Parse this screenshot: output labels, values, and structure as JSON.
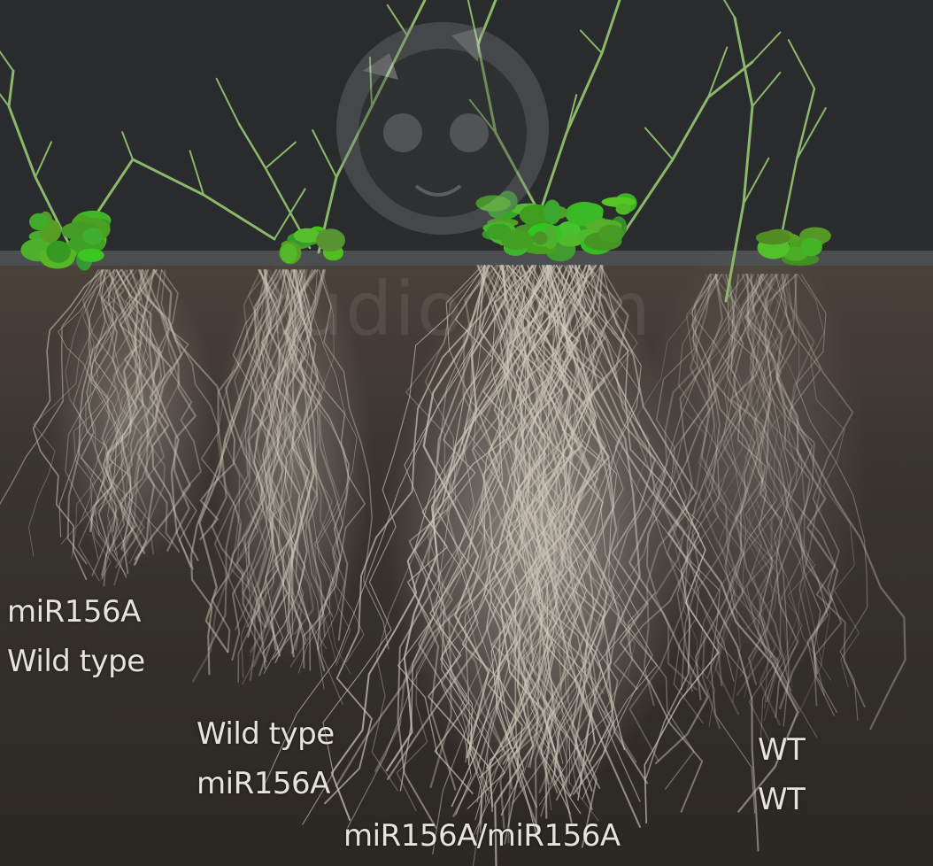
{
  "photo": {
    "colors": {
      "backdrop": "#2a2b2d",
      "soil": "#3b3631",
      "soil_dark": "#2b2723",
      "root": "#cfc9ba",
      "leaf": "#4fae2f",
      "stem": "#8bb86a",
      "label_text": "#e6e2dc"
    }
  },
  "labels": {
    "group_left": {
      "line1": "miR156A",
      "line2": "Wild type"
    },
    "group_mid": {
      "line1": "Wild type",
      "line2": "miR156A"
    },
    "group_center": {
      "line1": "miR156A/miR156A"
    },
    "group_right": {
      "line1": "WT",
      "line2": "WT"
    }
  },
  "watermark": {
    "icon": "cartoon-face-icon",
    "text": "tudio.com"
  }
}
